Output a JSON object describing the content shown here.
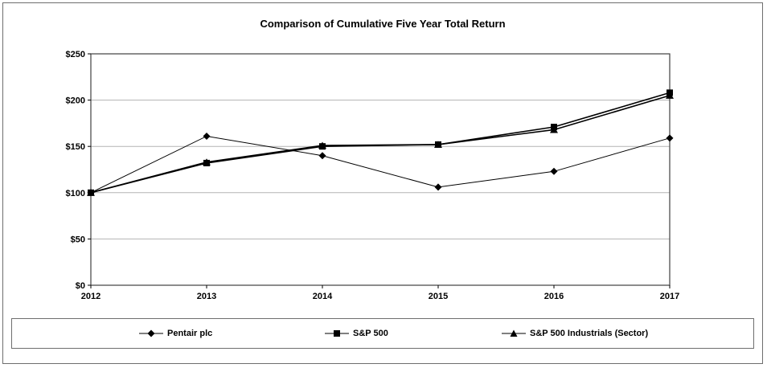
{
  "figure": {
    "title": "Comparison of Cumulative Five Year Total Return"
  },
  "chart_data": {
    "type": "line",
    "title": "Comparison of Cumulative Five Year Total Return",
    "x": [
      2012,
      2013,
      2014,
      2015,
      2016,
      2017
    ],
    "x_tick_labels": [
      "2012",
      "2013",
      "2014",
      "2015",
      "2016",
      "2017"
    ],
    "y_tick_labels": [
      "$0",
      "$50",
      "$100",
      "$150",
      "$200",
      "$250"
    ],
    "y_tick_step": 50,
    "ylim": [
      0,
      250
    ],
    "grid": "horizontal",
    "legend_position": "bottom",
    "series": [
      {
        "name": "Pentair plc",
        "marker": "diamond",
        "values": [
          100,
          161,
          140,
          106,
          123,
          159
        ]
      },
      {
        "name": "S&P 500",
        "marker": "square",
        "values": [
          100,
          132,
          150,
          152,
          171,
          208
        ]
      },
      {
        "name": "S&P 500 Industrials (Sector)",
        "marker": "triangle",
        "values": [
          100,
          133,
          151,
          152,
          168,
          205
        ]
      }
    ],
    "colors": {
      "line": "#000000",
      "grid": "#b3b3b3",
      "plot_border": "#404040",
      "background": "#ffffff"
    }
  },
  "legend": {
    "items": [
      {
        "label": "Pentair plc",
        "marker": "diamond"
      },
      {
        "label": "S&P 500",
        "marker": "square"
      },
      {
        "label": "S&P 500 Industrials (Sector)",
        "marker": "triangle"
      }
    ]
  }
}
